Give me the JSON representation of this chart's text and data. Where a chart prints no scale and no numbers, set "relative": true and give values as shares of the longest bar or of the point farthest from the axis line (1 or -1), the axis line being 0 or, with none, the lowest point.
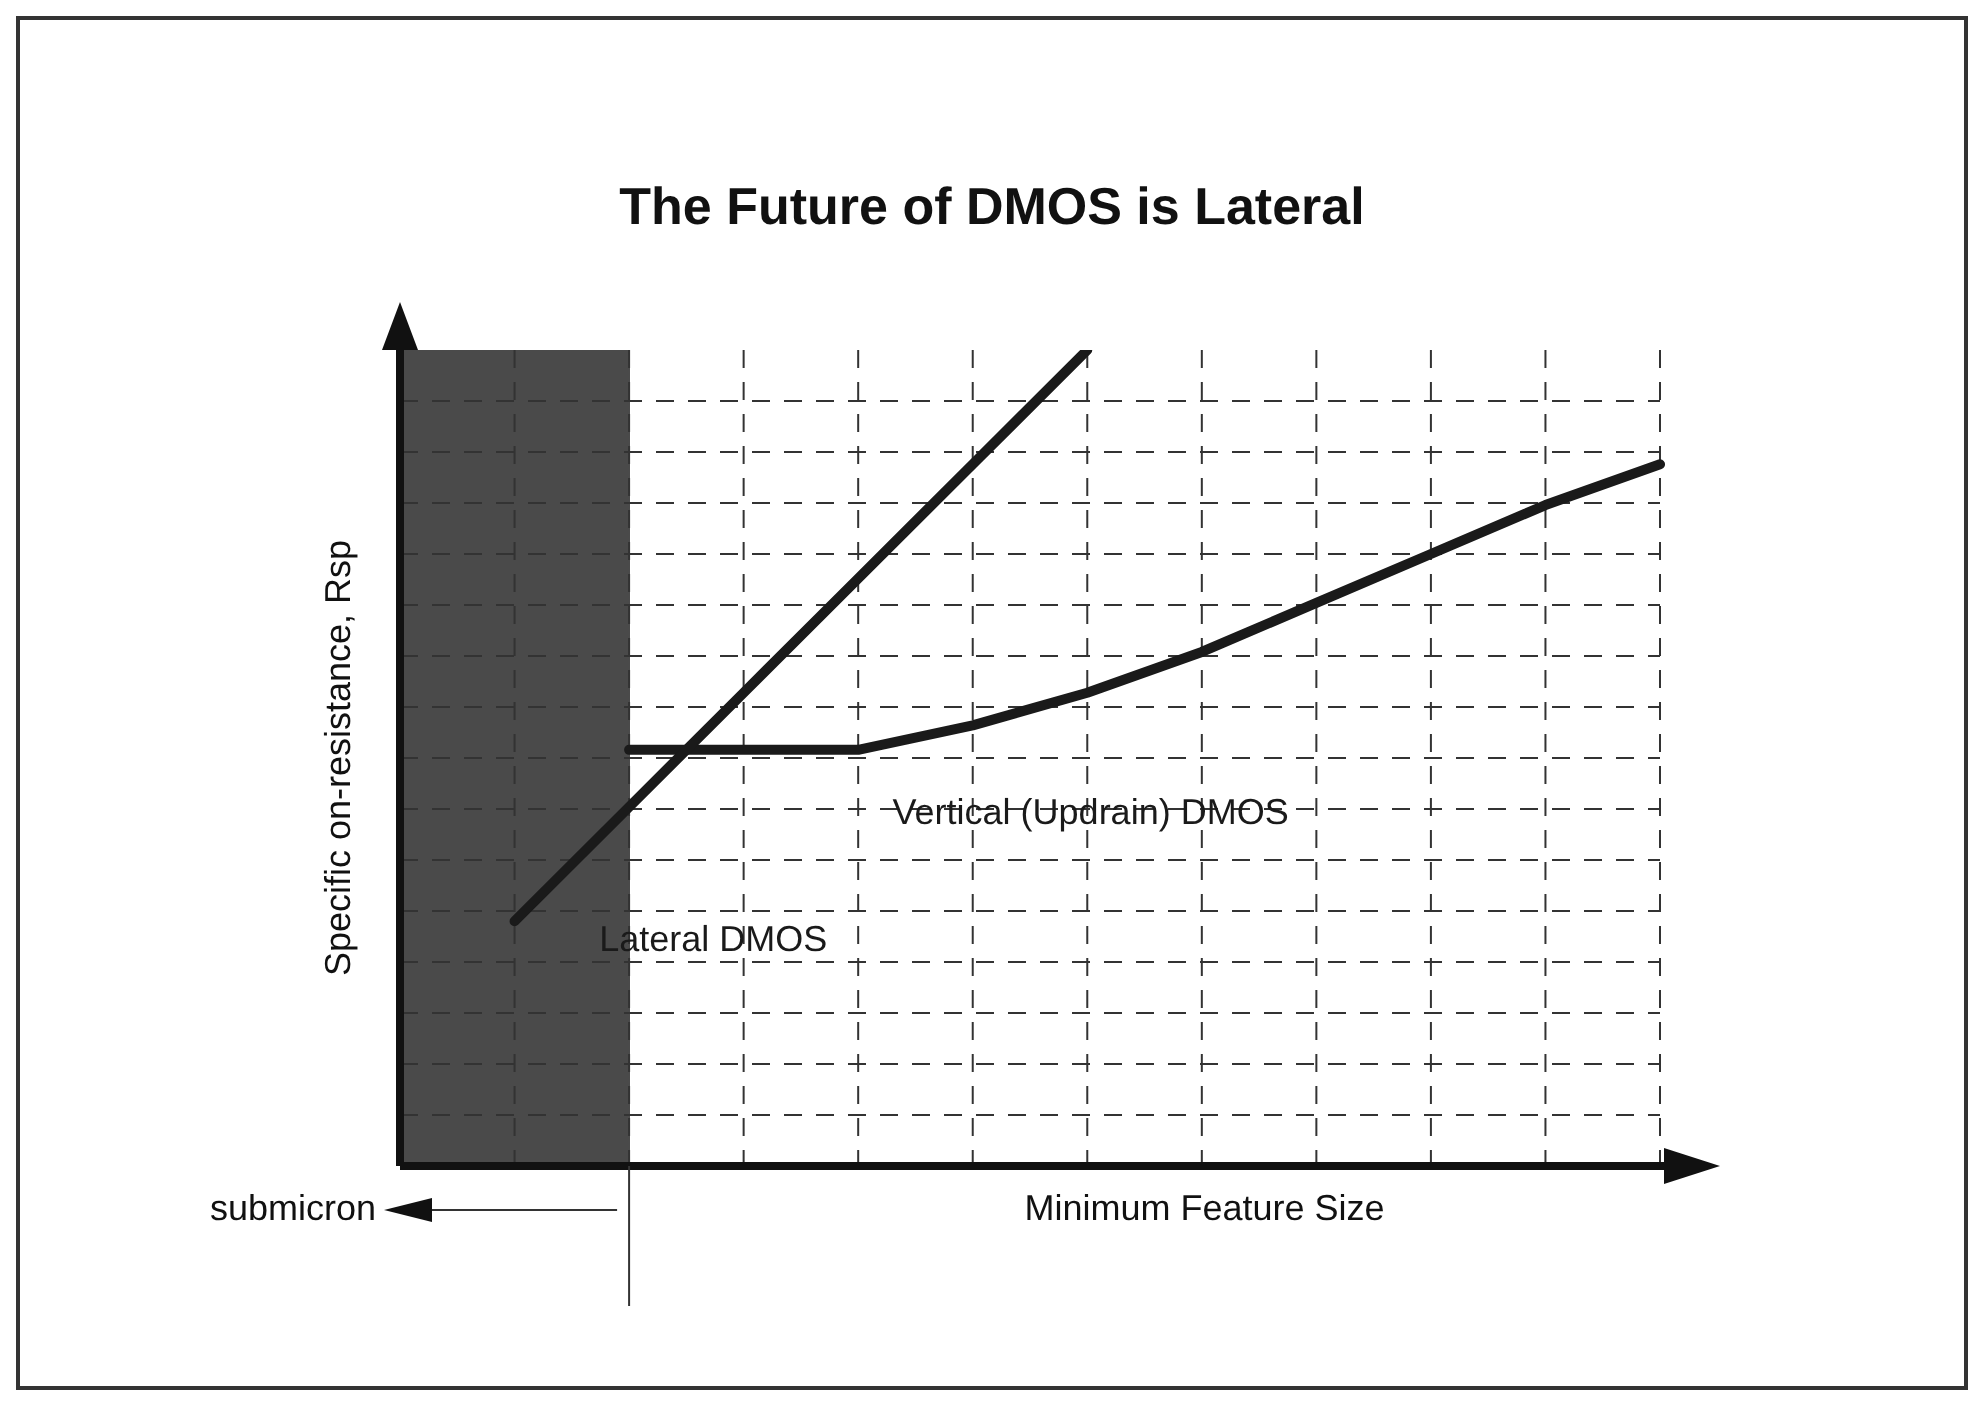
{
  "chart_data": {
    "type": "line",
    "title": "The Future of DMOS is Lateral",
    "xlabel": "Minimum Feature Size",
    "ylabel": "Specific on-resistance, Rsp",
    "relative": true,
    "grid": true,
    "legend": false,
    "marker": "none",
    "line_style": "solid",
    "categories": [
      null,
      null,
      null,
      null,
      null,
      null,
      null,
      null,
      null,
      null,
      null,
      null
    ],
    "series": [
      {
        "name": "Lateral DMOS",
        "color": "#1a1a1a",
        "values": [
          null,
          0.3,
          0.44,
          0.58,
          0.72,
          0.86,
          1,
          null,
          null,
          null,
          null,
          null
        ]
      },
      {
        "name": "Vertical (Updrain) DMOS",
        "color": "#1a1a1a",
        "values": [
          null,
          null,
          0.51,
          0.51,
          0.51,
          0.54,
          0.58,
          0.63,
          0.69,
          0.75,
          0.81,
          0.86
        ]
      }
    ],
    "annotations": [
      "submicron"
    ]
  }
}
